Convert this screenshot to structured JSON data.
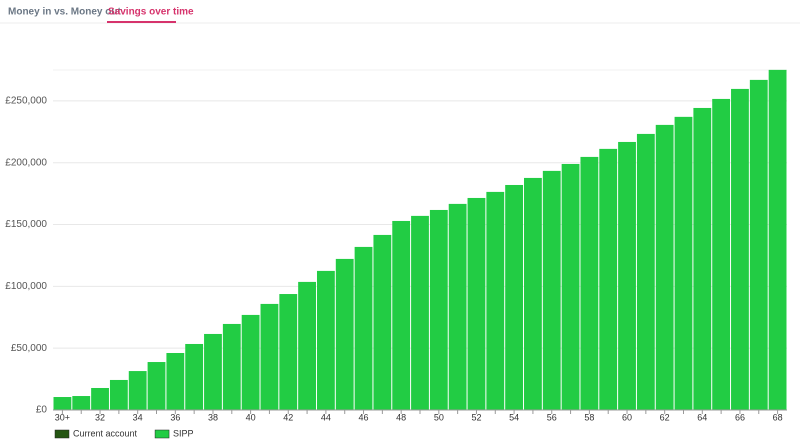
{
  "tabs": [
    "Money in vs. Money out",
    "Savings over time"
  ],
  "chart_data": {
    "type": "stacked_bar",
    "categories": [
      "30+",
      null,
      "32",
      null,
      "34",
      null,
      "36",
      null,
      "38",
      null,
      "40",
      null,
      "42",
      null,
      "44",
      null,
      "46",
      null,
      "48",
      null,
      "50",
      null,
      "52",
      null,
      "54",
      null,
      "56",
      null,
      "58",
      null,
      "60",
      null,
      "62",
      null,
      "64",
      null,
      "66",
      null,
      "68"
    ],
    "series": [
      {
        "name": "Current account",
        "color": "#245512",
        "values": [
          0,
          0,
          0,
          0,
          0,
          0,
          0,
          0,
          0,
          0,
          0,
          0,
          0,
          0,
          0,
          0,
          0,
          0,
          0,
          0,
          0,
          0,
          0,
          0,
          0,
          0,
          0,
          0,
          0,
          0,
          0,
          0,
          0,
          0,
          0,
          0,
          0,
          0,
          0
        ]
      },
      {
        "name": "SIPP",
        "color": "#22cc44",
        "values": [
          10500,
          11300,
          17800,
          24300,
          31500,
          38800,
          46100,
          53400,
          61500,
          69600,
          76900,
          85800,
          93800,
          103600,
          112500,
          122200,
          131900,
          141600,
          152900,
          157000,
          161800,
          166700,
          171500,
          176400,
          182000,
          187700,
          193400,
          199000,
          204700,
          211200,
          216800,
          223300,
          230600,
          237100,
          244300,
          251600,
          259700,
          267000,
          275100
        ]
      }
    ],
    "ylim": [
      0,
      275000
    ],
    "yticks": [
      {
        "value": 0,
        "label": "£0"
      },
      {
        "value": 50000,
        "label": "£50,000"
      },
      {
        "value": 100000,
        "label": "£100,000"
      },
      {
        "value": 150000,
        "label": "£150,000"
      },
      {
        "value": 200000,
        "label": "£200,000"
      },
      {
        "value": 250000,
        "label": "£250,000"
      }
    ],
    "grid": true
  }
}
